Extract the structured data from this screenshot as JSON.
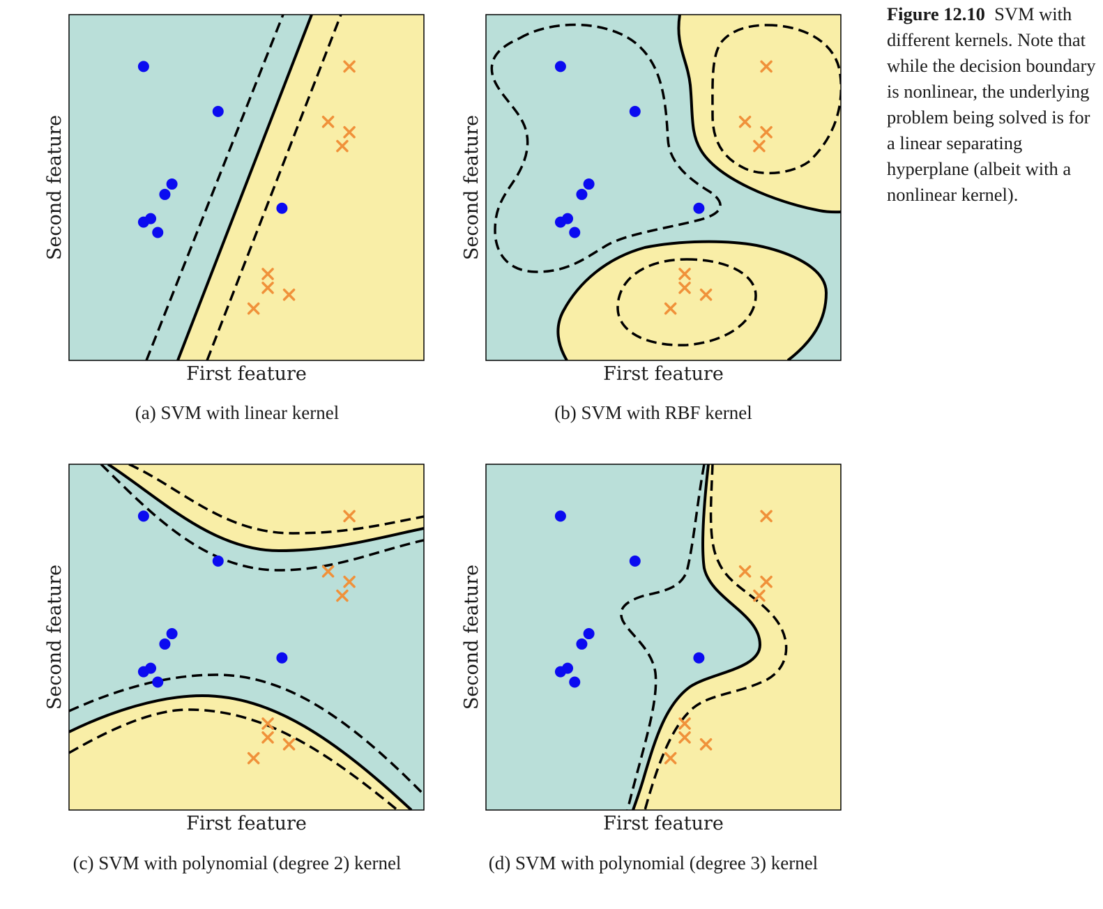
{
  "caption": {
    "label": "Figure 12.10",
    "text": "SVM with different kernels. Note that while the decision boundary is nonlinear, the underlying problem being solved is for a linear separating hyperplane (albeit with a nonlinear kernel)."
  },
  "colors": {
    "class_a_region": "#badfd9",
    "class_b_region": "#f9eea7",
    "class_a_point": "#0b0bf0",
    "class_b_point": "#f0913a",
    "boundary": "#000000"
  },
  "chart_data": [
    {
      "type": "scatter",
      "panel": "(a) SVM with linear kernel",
      "xlabel": "First feature",
      "ylabel": "Second feature",
      "xlim": [
        0,
        10
      ],
      "ylim": [
        0,
        10
      ],
      "ticks_visible": false,
      "grid": false,
      "kernel": "linear",
      "series": [
        {
          "marker": "circle",
          "color": "#0b0bf0",
          "points": [
            [
              2.1,
              8.5
            ],
            [
              4.2,
              7.2
            ],
            [
              2.9,
              5.1
            ],
            [
              2.7,
              4.8
            ],
            [
              2.1,
              4.0
            ],
            [
              2.3,
              4.1
            ],
            [
              2.5,
              3.7
            ],
            [
              6.0,
              4.4
            ]
          ]
        },
        {
          "marker": "x",
          "color": "#f0913a",
          "points": [
            [
              7.9,
              8.5
            ],
            [
              7.3,
              6.9
            ],
            [
              7.9,
              6.6
            ],
            [
              7.7,
              6.2
            ],
            [
              5.6,
              2.5
            ],
            [
              5.6,
              2.1
            ],
            [
              6.2,
              1.9
            ],
            [
              5.2,
              1.5
            ]
          ]
        }
      ],
      "decision_boundary": "straight line from (3.0,0) to (6.7,10), class A region left",
      "margins": "dashed lines parallel to the boundary on both sides"
    },
    {
      "type": "scatter",
      "panel": "(b) SVM with RBF kernel",
      "xlabel": "First feature",
      "ylabel": "Second feature",
      "xlim": [
        0,
        10
      ],
      "ylim": [
        0,
        10
      ],
      "ticks_visible": false,
      "grid": false,
      "kernel": "rbf",
      "series": [
        {
          "marker": "circle",
          "color": "#0b0bf0",
          "points": [
            [
              2.1,
              8.5
            ],
            [
              4.2,
              7.2
            ],
            [
              2.9,
              5.1
            ],
            [
              2.7,
              4.8
            ],
            [
              2.1,
              4.0
            ],
            [
              2.3,
              4.1
            ],
            [
              2.5,
              3.7
            ],
            [
              6.0,
              4.4
            ]
          ]
        },
        {
          "marker": "x",
          "color": "#f0913a",
          "points": [
            [
              7.9,
              8.5
            ],
            [
              7.3,
              6.9
            ],
            [
              7.9,
              6.6
            ],
            [
              7.7,
              6.2
            ],
            [
              5.6,
              2.5
            ],
            [
              5.6,
              2.1
            ],
            [
              6.2,
              1.9
            ],
            [
              5.2,
              1.5
            ]
          ]
        }
      ],
      "decision_boundary": "two closed class B regions (top-right and bottom-center)",
      "margins": "dashed contours around each group"
    },
    {
      "type": "scatter",
      "panel": "(c) SVM with polynomial (degree 2) kernel",
      "xlabel": "First feature",
      "ylabel": "Second feature",
      "xlim": [
        0,
        10
      ],
      "ylim": [
        0,
        10
      ],
      "ticks_visible": false,
      "grid": false,
      "kernel": "polynomial",
      "degree": 2,
      "series": [
        {
          "marker": "circle",
          "color": "#0b0bf0",
          "points": [
            [
              2.1,
              8.5
            ],
            [
              4.2,
              7.2
            ],
            [
              2.9,
              5.1
            ],
            [
              2.7,
              4.8
            ],
            [
              2.1,
              4.0
            ],
            [
              2.3,
              4.1
            ],
            [
              2.5,
              3.7
            ],
            [
              6.0,
              4.4
            ]
          ]
        },
        {
          "marker": "x",
          "color": "#f0913a",
          "points": [
            [
              7.9,
              8.5
            ],
            [
              7.3,
              6.9
            ],
            [
              7.9,
              6.6
            ],
            [
              7.7,
              6.2
            ],
            [
              5.6,
              2.5
            ],
            [
              5.6,
              2.1
            ],
            [
              6.2,
              1.9
            ],
            [
              5.2,
              1.5
            ]
          ]
        }
      ],
      "decision_boundary": "hyperbola-like curves, class B regions at top and bottom",
      "margins": "dashed curves on both sides"
    },
    {
      "type": "scatter",
      "panel": "(d) SVM with polynomial (degree 3) kernel",
      "xlabel": "First feature",
      "ylabel": "Second feature",
      "xlim": [
        0,
        10
      ],
      "ylim": [
        0,
        10
      ],
      "ticks_visible": false,
      "grid": false,
      "kernel": "polynomial",
      "degree": 3,
      "series": [
        {
          "marker": "circle",
          "color": "#0b0bf0",
          "points": [
            [
              2.1,
              8.5
            ],
            [
              4.2,
              7.2
            ],
            [
              2.9,
              5.1
            ],
            [
              2.7,
              4.8
            ],
            [
              2.1,
              4.0
            ],
            [
              2.3,
              4.1
            ],
            [
              2.5,
              3.7
            ],
            [
              6.0,
              4.4
            ]
          ]
        },
        {
          "marker": "x",
          "color": "#f0913a",
          "points": [
            [
              7.9,
              8.5
            ],
            [
              7.3,
              6.9
            ],
            [
              7.9,
              6.6
            ],
            [
              7.7,
              6.2
            ],
            [
              5.6,
              2.5
            ],
            [
              5.6,
              2.1
            ],
            [
              6.2,
              1.9
            ],
            [
              5.2,
              1.5
            ]
          ]
        }
      ],
      "decision_boundary": "S-shaped curve, class B region to the right",
      "margins": "dashed curves on both sides"
    }
  ]
}
